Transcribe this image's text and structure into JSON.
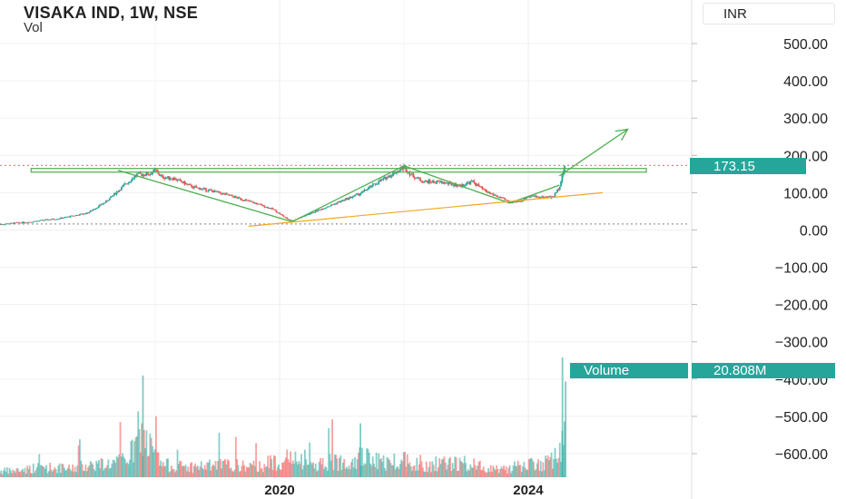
{
  "header": {
    "title": "VISAKA IND, 1W, NSE",
    "subtitle": "Vol",
    "currency": "INR"
  },
  "colors": {
    "accent": "#26a69a",
    "up": "#26a69a",
    "down": "#ef5350",
    "trend": "#4caf50",
    "support": "#f5a623",
    "dotted": "#999999"
  },
  "price_label": {
    "value": "173.15"
  },
  "volume_label": {
    "name": "Volume",
    "value": "20.808M"
  },
  "chart_data": {
    "type": "candlestick",
    "title": "VISAKA IND, 1W, NSE",
    "y_ticks": [
      "500.00",
      "400.00",
      "300.00",
      "200.00",
      "100.00",
      "0.00",
      "−100.00",
      "−200.00",
      "−300.00",
      "−400.00",
      "−500.00",
      "−600.00"
    ],
    "y_tick_values": [
      500,
      400,
      300,
      200,
      100,
      0,
      -100,
      -200,
      -300,
      -400,
      -500,
      -600
    ],
    "x_ticks": [
      "2020",
      "2024"
    ],
    "x_tick_years": [
      2020,
      2024
    ],
    "x_range": [
      2015.5,
      2026.6
    ],
    "price_range": [
      -650,
      560
    ],
    "last_price": 173.15,
    "close_series": [
      [
        2015.5,
        15
      ],
      [
        2016.0,
        22
      ],
      [
        2016.5,
        32
      ],
      [
        2016.9,
        45
      ],
      [
        2017.2,
        75
      ],
      [
        2017.5,
        120
      ],
      [
        2017.7,
        148
      ],
      [
        2017.9,
        150
      ],
      [
        2018.0,
        160
      ],
      [
        2018.1,
        142
      ],
      [
        2018.3,
        138
      ],
      [
        2018.6,
        115
      ],
      [
        2018.9,
        105
      ],
      [
        2019.2,
        92
      ],
      [
        2019.6,
        72
      ],
      [
        2019.9,
        55
      ],
      [
        2020.1,
        32
      ],
      [
        2020.2,
        25
      ],
      [
        2020.4,
        38
      ],
      [
        2020.7,
        58
      ],
      [
        2021.0,
        78
      ],
      [
        2021.3,
        98
      ],
      [
        2021.6,
        130
      ],
      [
        2021.9,
        158
      ],
      [
        2022.0,
        170
      ],
      [
        2022.1,
        150
      ],
      [
        2022.3,
        130
      ],
      [
        2022.6,
        128
      ],
      [
        2022.9,
        118
      ],
      [
        2023.1,
        130
      ],
      [
        2023.3,
        105
      ],
      [
        2023.5,
        90
      ],
      [
        2023.7,
        75
      ],
      [
        2023.9,
        78
      ],
      [
        2024.0,
        92
      ],
      [
        2024.2,
        88
      ],
      [
        2024.4,
        88
      ],
      [
        2024.5,
        115
      ],
      [
        2024.55,
        150
      ],
      [
        2024.6,
        173.15
      ]
    ],
    "volume_series": [
      [
        2015.7,
        0.15
      ],
      [
        2016.2,
        0.25
      ],
      [
        2016.6,
        0.2
      ],
      [
        2016.9,
        0.3
      ],
      [
        2017.4,
        0.35
      ],
      [
        2017.6,
        0.55
      ],
      [
        2017.8,
        1.0
      ],
      [
        2018.1,
        0.3
      ],
      [
        2018.6,
        0.25
      ],
      [
        2019.1,
        0.3
      ],
      [
        2019.6,
        0.25
      ],
      [
        2020.1,
        0.45
      ],
      [
        2020.5,
        0.3
      ],
      [
        2021.0,
        0.4
      ],
      [
        2021.3,
        0.5
      ],
      [
        2021.7,
        0.35
      ],
      [
        2022.0,
        0.45
      ],
      [
        2022.4,
        0.3
      ],
      [
        2022.9,
        0.35
      ],
      [
        2023.3,
        0.25
      ],
      [
        2023.6,
        0.2
      ],
      [
        2024.0,
        0.3
      ],
      [
        2024.3,
        0.35
      ],
      [
        2024.5,
        0.5
      ],
      [
        2024.55,
        1.0
      ],
      [
        2024.6,
        0.8
      ]
    ],
    "resistance": [
      2016.0,
      2025.9,
      160
    ],
    "trend_lines": [
      [
        [
          2017.4,
          160
        ],
        [
          2020.2,
          22
        ]
      ],
      [
        [
          2020.2,
          22
        ],
        [
          2022.0,
          172
        ]
      ],
      [
        [
          2022.0,
          172
        ],
        [
          2023.7,
          72
        ]
      ],
      [
        [
          2023.7,
          72
        ],
        [
          2024.5,
          120
        ]
      ],
      [
        [
          2024.5,
          145
        ],
        [
          2025.6,
          270
        ]
      ]
    ],
    "support_line": [
      [
        2019.5,
        10
      ],
      [
        2025.2,
        100
      ]
    ],
    "dotted_lines": [
      173.15,
      16
    ],
    "grid": true,
    "legend_position": "none"
  }
}
